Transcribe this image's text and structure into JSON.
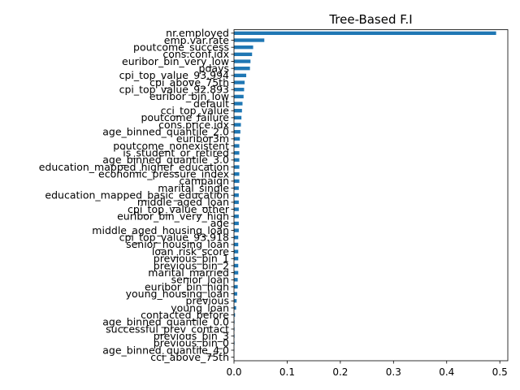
{
  "chart_data": {
    "type": "bar",
    "orientation": "horizontal",
    "title": "Tree-Based F.I",
    "xlabel": "",
    "ylabel": "",
    "xlim": [
      0,
      0.515
    ],
    "xticks": [
      "0.0",
      "0.1",
      "0.2",
      "0.3",
      "0.4",
      "0.5"
    ],
    "grid": false,
    "legend": "none",
    "bar_color": "#1f77b4",
    "categories": [
      "nr.employed",
      "emp.var.rate",
      "poutcome_success",
      "cons.conf.idx",
      "euribor_bin_very_low",
      "pdays",
      "cpi_top_value_93.994",
      "cpi_above_75th",
      "cpi_top_value_92.893",
      "euribor_bin_low",
      "default",
      "cci_top_value",
      "poutcome_failure",
      "cons.price.idx",
      "age_binned_quantile_2.0",
      "euribor3m",
      "poutcome_nonexistent",
      "is_student_or_retired",
      "age_binned_quantile_3.0",
      "education_mapped_higher_education",
      "economic_pressure_index",
      "campaign",
      "marital_single",
      "education_mapped_basic_education",
      "middle_aged_loan",
      "cpi_top_value_other",
      "euribor_bin_very_high",
      "age",
      "middle_aged_housing_loan",
      "cpi_top_value_93.918",
      "senior_housing_loan",
      "loan_risk_score",
      "previous_bin_1",
      "previous_bin_2",
      "marital_married",
      "senior_loan",
      "euribor_bin_high",
      "young_housing_loan",
      "previous",
      "young_loan",
      "contacted_before",
      "age_binned_quantile_0.0",
      "successful_prev_contact",
      "previous_bin_3",
      "previous_bin_0",
      "age_binned_quantile_4.0",
      "cci_above_75th"
    ],
    "values": [
      0.493,
      0.057,
      0.036,
      0.034,
      0.031,
      0.03,
      0.023,
      0.02,
      0.019,
      0.018,
      0.016,
      0.015,
      0.014,
      0.013,
      0.012,
      0.011,
      0.01,
      0.01,
      0.01,
      0.01,
      0.01,
      0.01,
      0.009,
      0.009,
      0.009,
      0.009,
      0.009,
      0.009,
      0.009,
      0.008,
      0.008,
      0.008,
      0.008,
      0.008,
      0.008,
      0.007,
      0.007,
      0.006,
      0.005,
      0.004,
      0.002,
      0.001,
      0.001,
      0.001,
      0.001,
      0.0005,
      0.0003
    ]
  }
}
